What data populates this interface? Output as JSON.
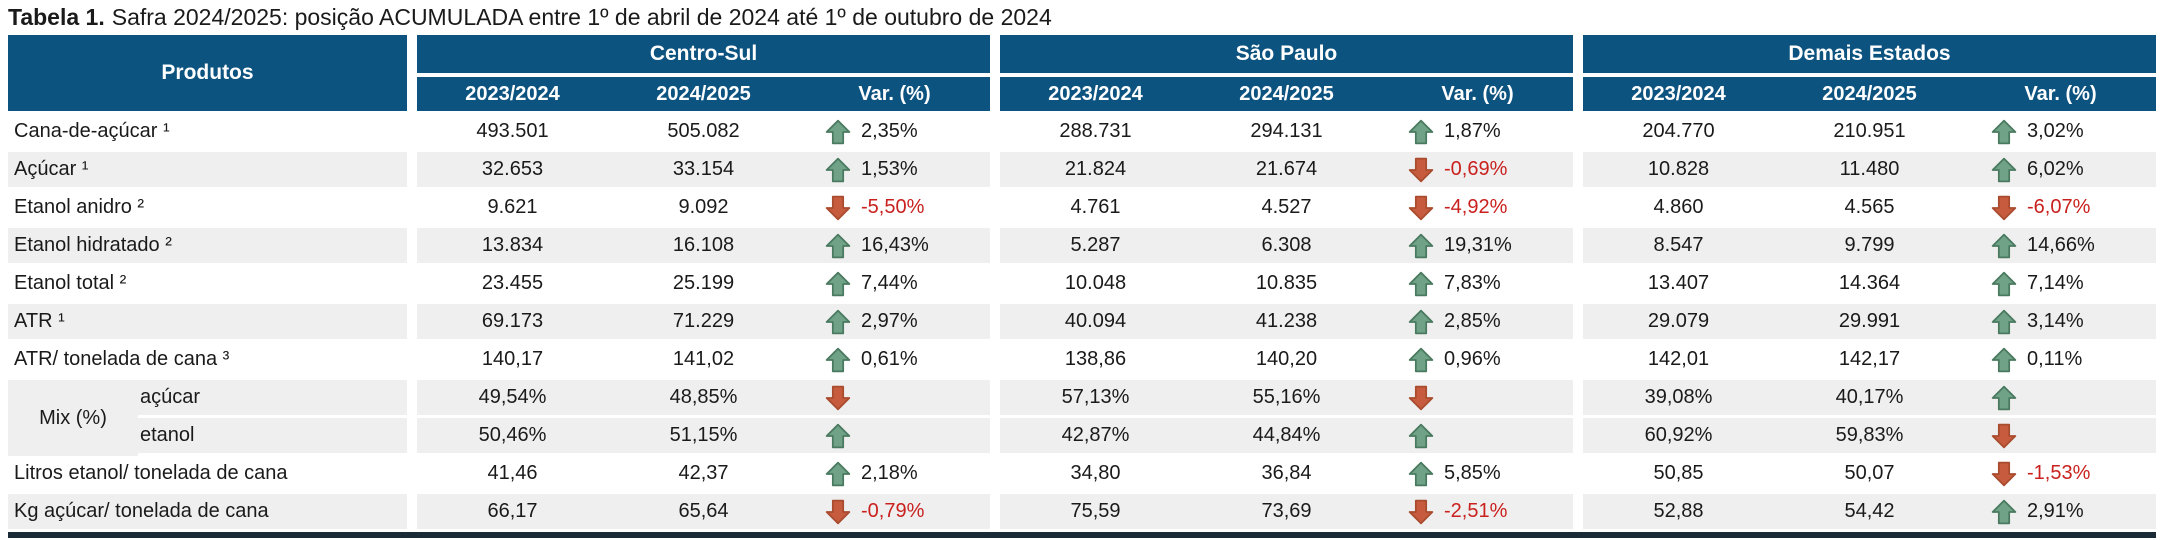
{
  "title": {
    "prefix": "Tabela 1.",
    "text": "Safra 2024/2025: posição ACUMULADA entre 1º de abril de 2024 até 1º de outubro de 2024"
  },
  "table": {
    "products_header": "Produtos",
    "mix_label": "Mix (%)",
    "groups": [
      {
        "label": "Centro-Sul",
        "columns": [
          "2023/2024",
          "2024/2025",
          "Var. (%)"
        ]
      },
      {
        "label": "São Paulo",
        "columns": [
          "2023/2024",
          "2024/2025",
          "Var. (%)"
        ]
      },
      {
        "label": "Demais Estados",
        "columns": [
          "2023/2024",
          "2024/2025",
          "Var. (%)"
        ]
      }
    ],
    "rows": [
      {
        "label": "Cana-de-açúcar ¹",
        "mix": false,
        "cells": [
          {
            "v1": "493.501",
            "v2": "505.082",
            "dir": "up",
            "var": "2,35%"
          },
          {
            "v1": "288.731",
            "v2": "294.131",
            "dir": "up",
            "var": "1,87%"
          },
          {
            "v1": "204.770",
            "v2": "210.951",
            "dir": "up",
            "var": "3,02%"
          }
        ]
      },
      {
        "label": "Açúcar ¹",
        "mix": false,
        "cells": [
          {
            "v1": "32.653",
            "v2": "33.154",
            "dir": "up",
            "var": "1,53%"
          },
          {
            "v1": "21.824",
            "v2": "21.674",
            "dir": "down",
            "var": "-0,69%"
          },
          {
            "v1": "10.828",
            "v2": "11.480",
            "dir": "up",
            "var": "6,02%"
          }
        ]
      },
      {
        "label": "Etanol anidro ²",
        "mix": false,
        "cells": [
          {
            "v1": "9.621",
            "v2": "9.092",
            "dir": "down",
            "var": "-5,50%"
          },
          {
            "v1": "4.761",
            "v2": "4.527",
            "dir": "down",
            "var": "-4,92%"
          },
          {
            "v1": "4.860",
            "v2": "4.565",
            "dir": "down",
            "var": "-6,07%"
          }
        ]
      },
      {
        "label": "Etanol hidratado ²",
        "mix": false,
        "cells": [
          {
            "v1": "13.834",
            "v2": "16.108",
            "dir": "up",
            "var": "16,43%"
          },
          {
            "v1": "5.287",
            "v2": "6.308",
            "dir": "up",
            "var": "19,31%"
          },
          {
            "v1": "8.547",
            "v2": "9.799",
            "dir": "up",
            "var": "14,66%"
          }
        ]
      },
      {
        "label": "Etanol total ²",
        "mix": false,
        "cells": [
          {
            "v1": "23.455",
            "v2": "25.199",
            "dir": "up",
            "var": "7,44%"
          },
          {
            "v1": "10.048",
            "v2": "10.835",
            "dir": "up",
            "var": "7,83%"
          },
          {
            "v1": "13.407",
            "v2": "14.364",
            "dir": "up",
            "var": "7,14%"
          }
        ]
      },
      {
        "label": "ATR ¹",
        "mix": false,
        "cells": [
          {
            "v1": "69.173",
            "v2": "71.229",
            "dir": "up",
            "var": "2,97%"
          },
          {
            "v1": "40.094",
            "v2": "41.238",
            "dir": "up",
            "var": "2,85%"
          },
          {
            "v1": "29.079",
            "v2": "29.991",
            "dir": "up",
            "var": "3,14%"
          }
        ]
      },
      {
        "label": "ATR/ tonelada de cana ³",
        "mix": false,
        "cells": [
          {
            "v1": "140,17",
            "v2": "141,02",
            "dir": "up",
            "var": "0,61%"
          },
          {
            "v1": "138,86",
            "v2": "140,20",
            "dir": "up",
            "var": "0,96%"
          },
          {
            "v1": "142,01",
            "v2": "142,17",
            "dir": "up",
            "var": "0,11%"
          }
        ]
      },
      {
        "label": "açúcar",
        "mix": true,
        "cells": [
          {
            "v1": "49,54%",
            "v2": "48,85%",
            "dir": "down",
            "var": ""
          },
          {
            "v1": "57,13%",
            "v2": "55,16%",
            "dir": "down",
            "var": ""
          },
          {
            "v1": "39,08%",
            "v2": "40,17%",
            "dir": "up",
            "var": ""
          }
        ]
      },
      {
        "label": "etanol",
        "mix": true,
        "cells": [
          {
            "v1": "50,46%",
            "v2": "51,15%",
            "dir": "up",
            "var": ""
          },
          {
            "v1": "42,87%",
            "v2": "44,84%",
            "dir": "up",
            "var": ""
          },
          {
            "v1": "60,92%",
            "v2": "59,83%",
            "dir": "down",
            "var": ""
          }
        ]
      },
      {
        "label": "Litros etanol/ tonelada de cana",
        "mix": false,
        "cells": [
          {
            "v1": "41,46",
            "v2": "42,37",
            "dir": "up",
            "var": "2,18%"
          },
          {
            "v1": "34,80",
            "v2": "36,84",
            "dir": "up",
            "var": "5,85%"
          },
          {
            "v1": "50,85",
            "v2": "50,07",
            "dir": "down",
            "var": "-1,53%"
          }
        ]
      },
      {
        "label": "Kg açúcar/ tonelada de cana",
        "mix": false,
        "cells": [
          {
            "v1": "66,17",
            "v2": "65,64",
            "dir": "down",
            "var": "-0,79%"
          },
          {
            "v1": "75,59",
            "v2": "73,69",
            "dir": "down",
            "var": "-2,51%"
          },
          {
            "v1": "52,88",
            "v2": "54,42",
            "dir": "up",
            "var": "2,91%"
          }
        ]
      }
    ]
  },
  "icons": {
    "up": "trend-up-icon",
    "down": "trend-down-icon"
  },
  "colors": {
    "header_blue": "#0d5380",
    "row_shade": "#efefef",
    "arrow_up": "#6fa287",
    "arrow_up_border": "#49795f",
    "arrow_down": "#c65c3d",
    "arrow_down_border": "#a94b2f",
    "negative_text": "#c9211e",
    "bottom_border": "#1a2a36",
    "text": "#1a1a1a"
  }
}
